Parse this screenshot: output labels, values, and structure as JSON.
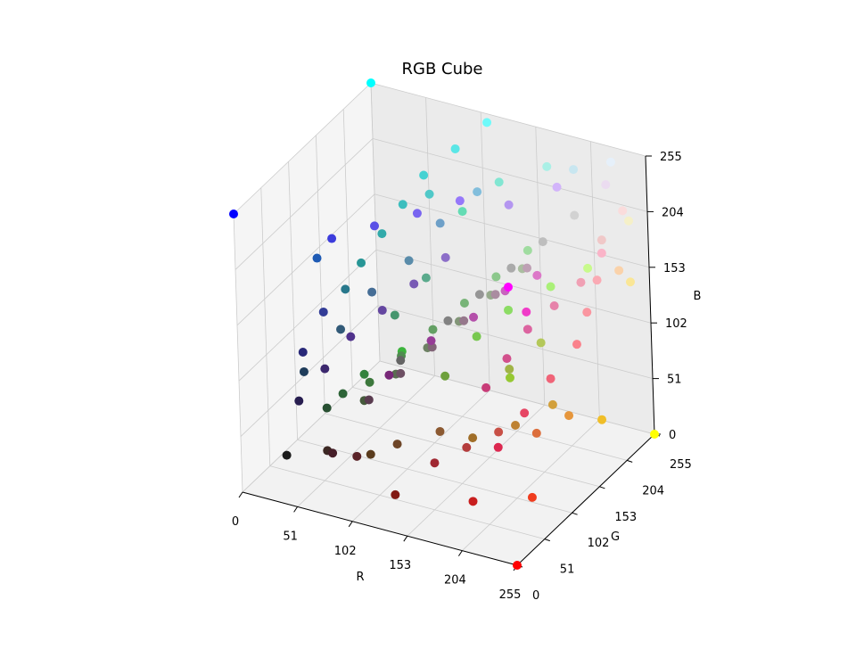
{
  "chart_data": {
    "type": "scatter",
    "title": "RGB Cube",
    "xlabel": "R",
    "ylabel": "G",
    "zlabel": "B",
    "xlim": [
      0,
      255
    ],
    "ylim": [
      0,
      255
    ],
    "zlim": [
      0,
      255
    ],
    "xticks": [
      "0",
      "51",
      "102",
      "153",
      "204",
      "255"
    ],
    "yticks": [
      "0",
      "51",
      "102",
      "153",
      "204",
      "255"
    ],
    "zticks": [
      "0",
      "51",
      "102",
      "153",
      "204",
      "255"
    ],
    "grid": true,
    "colors": {
      "pane_bottom": "#f2f2f2",
      "pane_back": "#ebebeb",
      "pane_side": "#f5f5f5",
      "grid": "#cccccc",
      "axis_line": "#000000"
    },
    "points": [
      [
        28,
        28,
        28
      ],
      [
        0,
        0,
        255
      ],
      [
        0,
        255,
        255
      ],
      [
        255,
        0,
        0
      ],
      [
        255,
        255,
        0
      ],
      [
        255,
        0,
        255
      ],
      [
        60,
        40,
        35
      ],
      [
        70,
        30,
        40
      ],
      [
        90,
        35,
        40
      ],
      [
        130,
        25,
        20
      ],
      [
        200,
        30,
        30
      ],
      [
        240,
        60,
        30
      ],
      [
        40,
        80,
        50
      ],
      [
        45,
        100,
        55
      ],
      [
        50,
        130,
        60
      ],
      [
        60,
        180,
        60
      ],
      [
        110,
        160,
        60
      ],
      [
        150,
        200,
        50
      ],
      [
        40,
        40,
        120
      ],
      [
        50,
        60,
        150
      ],
      [
        30,
        90,
        180
      ],
      [
        40,
        120,
        140
      ],
      [
        70,
        150,
        110
      ],
      [
        90,
        170,
        140
      ],
      [
        160,
        40,
        50
      ],
      [
        180,
        60,
        60
      ],
      [
        200,
        80,
        70
      ],
      [
        220,
        110,
        60
      ],
      [
        230,
        150,
        60
      ],
      [
        240,
        190,
        40
      ],
      [
        120,
        40,
        120
      ],
      [
        150,
        60,
        150
      ],
      [
        180,
        80,
        170
      ],
      [
        200,
        100,
        190
      ],
      [
        220,
        120,
        200
      ],
      [
        240,
        60,
        200
      ],
      [
        100,
        100,
        100
      ],
      [
        130,
        130,
        130
      ],
      [
        150,
        150,
        150
      ],
      [
        170,
        170,
        170
      ],
      [
        190,
        190,
        190
      ],
      [
        210,
        210,
        210
      ],
      [
        80,
        200,
        200
      ],
      [
        100,
        220,
        180
      ],
      [
        130,
        230,
        210
      ],
      [
        170,
        240,
        230
      ],
      [
        200,
        230,
        240
      ],
      [
        230,
        240,
        250
      ],
      [
        60,
        60,
        220
      ],
      [
        90,
        80,
        230
      ],
      [
        120,
        100,
        240
      ],
      [
        150,
        120,
        250
      ],
      [
        180,
        150,
        240
      ],
      [
        210,
        180,
        250
      ],
      [
        240,
        200,
        200
      ],
      [
        250,
        210,
        170
      ],
      [
        250,
        230,
        150
      ],
      [
        245,
        240,
        200
      ],
      [
        250,
        220,
        220
      ],
      [
        235,
        220,
        240
      ],
      [
        110,
        70,
        40
      ],
      [
        140,
        90,
        50
      ],
      [
        160,
        110,
        40
      ],
      [
        190,
        130,
        50
      ],
      [
        210,
        160,
        60
      ],
      [
        90,
        60,
        30
      ],
      [
        30,
        60,
        90
      ],
      [
        50,
        90,
        120
      ],
      [
        70,
        110,
        150
      ],
      [
        90,
        140,
        170
      ],
      [
        110,
        160,
        200
      ],
      [
        130,
        190,
        220
      ],
      [
        60,
        120,
        60
      ],
      [
        80,
        140,
        80
      ],
      [
        100,
        160,
        100
      ],
      [
        120,
        180,
        120
      ],
      [
        140,
        200,
        140
      ],
      [
        160,
        220,
        160
      ],
      [
        200,
        60,
        120
      ],
      [
        210,
        80,
        140
      ],
      [
        220,
        100,
        160
      ],
      [
        230,
        130,
        170
      ],
      [
        240,
        160,
        180
      ],
      [
        250,
        180,
        200
      ],
      [
        120,
        200,
        80
      ],
      [
        140,
        220,
        100
      ],
      [
        170,
        240,
        120
      ],
      [
        200,
        250,
        140
      ],
      [
        180,
        200,
        90
      ],
      [
        160,
        180,
        70
      ],
      [
        40,
        30,
        80
      ],
      [
        60,
        40,
        110
      ],
      [
        80,
        50,
        140
      ],
      [
        100,
        70,
        160
      ],
      [
        120,
        90,
        180
      ],
      [
        140,
        110,
        200
      ],
      [
        70,
        90,
        60
      ],
      [
        90,
        110,
        80
      ],
      [
        110,
        130,
        100
      ],
      [
        130,
        150,
        120
      ],
      [
        150,
        170,
        140
      ],
      [
        170,
        190,
        160
      ],
      [
        90,
        60,
        80
      ],
      [
        110,
        80,
        100
      ],
      [
        130,
        100,
        120
      ],
      [
        150,
        120,
        140
      ],
      [
        170,
        140,
        160
      ],
      [
        190,
        160,
        180
      ],
      [
        220,
        40,
        80
      ],
      [
        230,
        70,
        100
      ],
      [
        240,
        100,
        120
      ],
      [
        250,
        130,
        140
      ],
      [
        250,
        150,
        160
      ],
      [
        250,
        170,
        180
      ],
      [
        40,
        150,
        150
      ],
      [
        50,
        170,
        170
      ],
      [
        60,
        190,
        190
      ],
      [
        70,
        210,
        210
      ],
      [
        90,
        230,
        230
      ],
      [
        110,
        250,
        250
      ]
    ]
  }
}
